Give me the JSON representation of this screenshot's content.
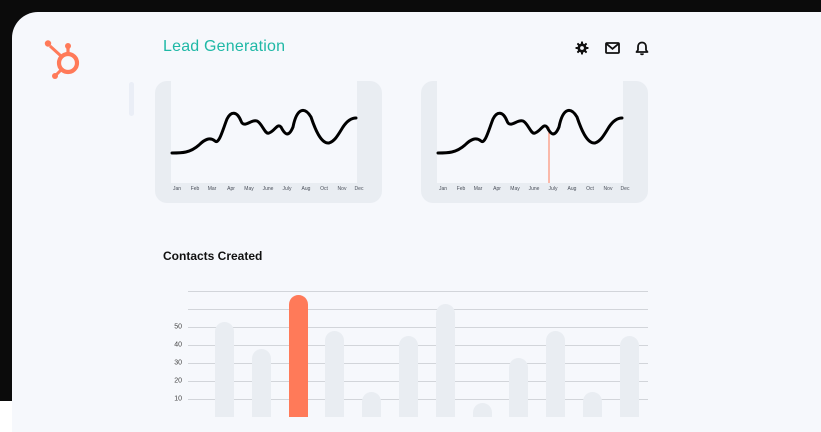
{
  "app": {
    "title": "Lead Generation"
  },
  "brand": {
    "logo_icon": "hubspot-sprocket-icon",
    "color": "#ff7a59",
    "accent": "#1fb8a6"
  },
  "toolbar": {
    "icons": [
      "settings-icon",
      "mail-icon",
      "notification-bell-icon"
    ]
  },
  "trend_cards": [
    {
      "months": [
        "Jan",
        "Feb",
        "Mar",
        "Apr",
        "May",
        "June",
        "July",
        "Aug",
        "Oct",
        "Nov",
        "Dec"
      ],
      "highlight_index": null
    },
    {
      "months": [
        "Jan",
        "Feb",
        "Mar",
        "Apr",
        "May",
        "June",
        "July",
        "Aug",
        "Oct",
        "Nov",
        "Dec"
      ],
      "highlight_index": 5.6
    }
  ],
  "contacts_section": {
    "title": "Contacts Created"
  },
  "chart_data": {
    "type": "bar",
    "title": "Contacts Created",
    "yticks": [
      "10",
      "20",
      "30",
      "40",
      "50"
    ],
    "values": [
      53,
      38,
      68,
      48,
      14,
      45,
      63,
      8,
      33,
      48,
      14,
      45
    ],
    "highlight_index": 2,
    "ylim": [
      0,
      68
    ],
    "grid": true,
    "colors": {
      "bar": "#e9edf2",
      "highlight": "#ff7a59",
      "grid": "#d2d5da"
    }
  }
}
